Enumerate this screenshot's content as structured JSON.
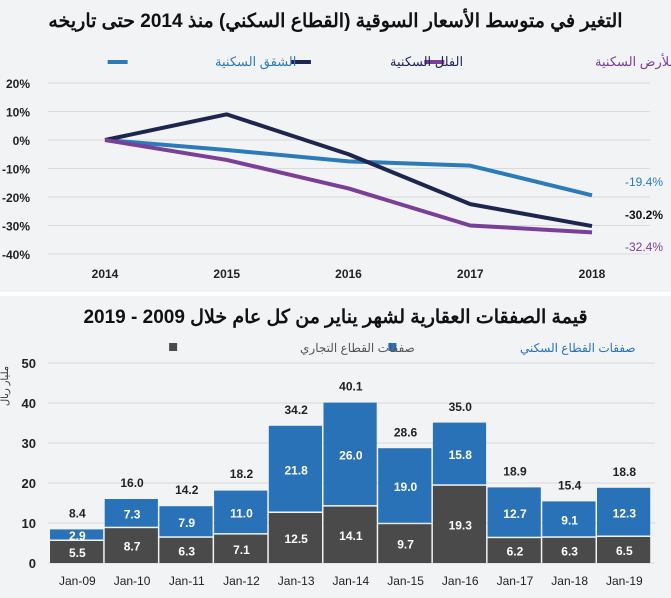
{
  "chart_data": [
    {
      "type": "line",
      "title": "التغير في متوسط الأسعار السوقية (القطاع السكني) منذ 2014 حتى تاريخه",
      "x": [
        "2014",
        "2015",
        "2016",
        "2017",
        "2018"
      ],
      "ylim": [
        -40,
        20
      ],
      "yticks": [
        "20%",
        "10%",
        "0%",
        "-10%",
        "-20%",
        "-30%",
        "-40%"
      ],
      "ytick_values": [
        20,
        10,
        0,
        -10,
        -20,
        -30,
        -40
      ],
      "grid": true,
      "legend_placement": "top",
      "series": [
        {
          "name": "الشقق السكنية",
          "color": "#2b7bb9",
          "values": [
            0,
            -3.5,
            -7.5,
            -9,
            -19.4
          ],
          "end_label": "-19.4%"
        },
        {
          "name": "الفلل السكنية",
          "color": "#1e2650",
          "values": [
            0,
            9,
            -5,
            -22.5,
            -30.2
          ],
          "end_label": "-30.2%"
        },
        {
          "name": "المتر المربع للأرض السكنية",
          "color": "#7a3f97",
          "values": [
            0,
            -7,
            -17,
            -30,
            -32.4
          ],
          "end_label": "-32.4%"
        }
      ]
    },
    {
      "type": "bar",
      "stacked": true,
      "title": "قيمة الصفقات العقارية لشهر يناير من كل عام خلال 2009 - 2019",
      "ylabel": "مليار ريال",
      "ylim": [
        0,
        50
      ],
      "yticks": [
        "0",
        "10",
        "20",
        "30",
        "40",
        "50"
      ],
      "ytick_values": [
        0,
        10,
        20,
        30,
        40,
        50
      ],
      "grid": true,
      "legend_placement": "top",
      "categories": [
        "Jan-09",
        "Jan-10",
        "Jan-11",
        "Jan-12",
        "Jan-13",
        "Jan-14",
        "Jan-15",
        "Jan-16",
        "Jan-17",
        "Jan-18",
        "Jan-19"
      ],
      "series": [
        {
          "name": "صفقات القطاع التجاري",
          "color": "#4a4a4a",
          "values": [
            5.5,
            8.7,
            6.3,
            7.1,
            12.5,
            14.1,
            9.7,
            19.3,
            6.2,
            6.3,
            6.5
          ],
          "labels": [
            "5.5",
            "8.7",
            "6.3",
            "7.1",
            "12.5",
            "14.1",
            "9.7",
            "19.3",
            "6.2",
            "6.3",
            "6.5"
          ]
        },
        {
          "name": "صفقات القطاع السكني",
          "color": "#2a72b8",
          "values": [
            2.9,
            7.3,
            7.9,
            11.0,
            21.8,
            26.0,
            19.0,
            15.8,
            12.7,
            9.1,
            12.3
          ],
          "labels": [
            "2.9",
            "7.3",
            "7.9",
            "11.0",
            "21.8",
            "26.0",
            "19.0",
            "15.8",
            "12.7",
            "9.1",
            "12.3"
          ]
        }
      ],
      "totals": [
        "8.4",
        "16.0",
        "14.2",
        "18.2",
        "34.2",
        "40.1",
        "28.6",
        "35.0",
        "18.9",
        "15.4",
        "18.8"
      ],
      "total_values": [
        8.4,
        16.0,
        14.2,
        18.2,
        34.2,
        40.1,
        28.6,
        35.0,
        18.9,
        15.4,
        18.8
      ]
    }
  ]
}
